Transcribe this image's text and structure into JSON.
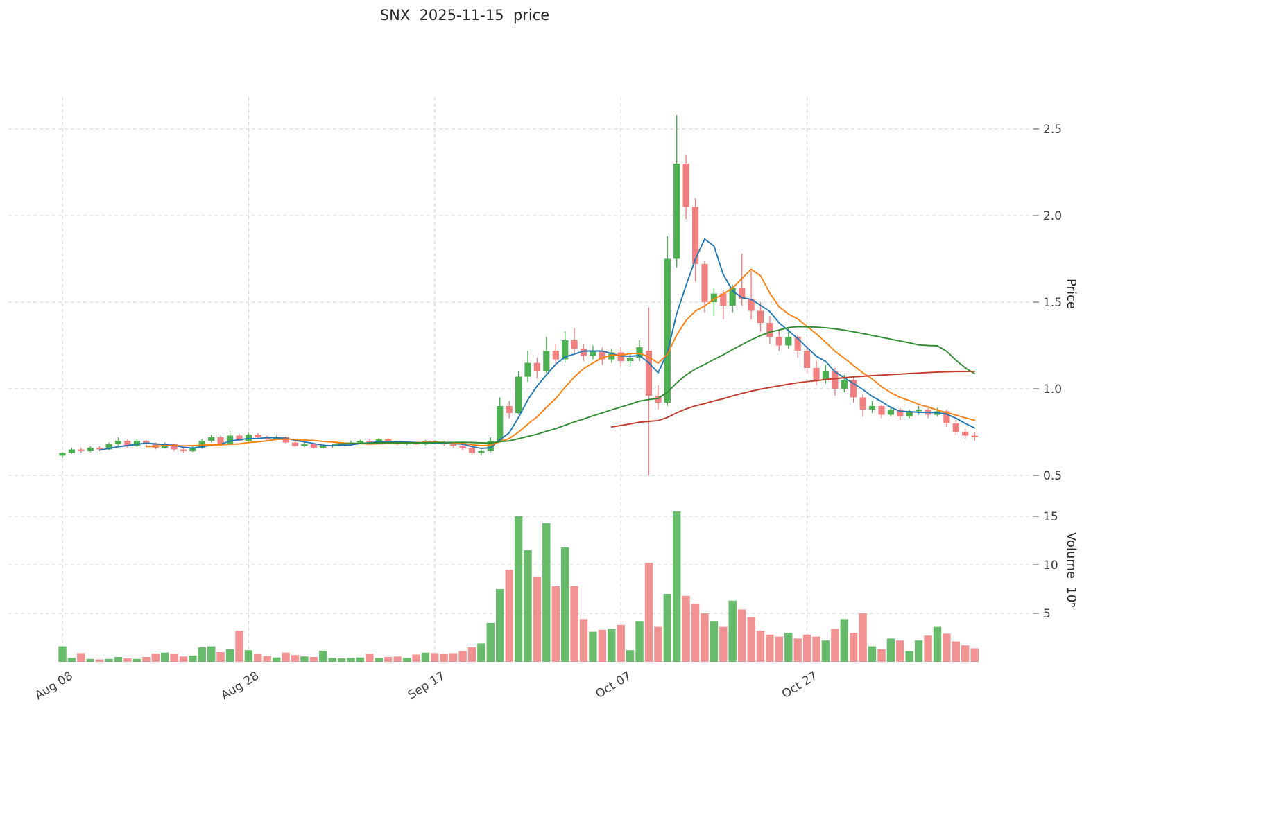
{
  "title": "SNX  2025-11-15  price",
  "axes": {
    "price_label": "Price",
    "volume_label": "Volume  10⁶",
    "price_ticks": [
      0.5,
      1.0,
      1.5,
      2.0,
      2.5
    ],
    "volume_ticks": [
      5,
      10,
      15
    ],
    "x_tick_labels": [
      "Aug 08",
      "Aug 28",
      "Sep 17",
      "Oct 07",
      "Oct 27"
    ],
    "x_tick_indices": [
      0,
      20,
      40,
      60,
      80
    ]
  },
  "colors": {
    "up": "#4caf50",
    "down": "#f08080",
    "grid": "#cfcfcf",
    "text": "#3c3c3c"
  },
  "chart_data": {
    "type": "candlestick",
    "title": "SNX  2025-11-15  price",
    "xlabel": "",
    "ylabel_price": "Price",
    "ylabel_volume": "Volume  10⁶",
    "ylim_price": [
      0.45,
      2.7
    ],
    "ylim_volume": [
      0,
      16.5
    ],
    "grid": true,
    "columns": [
      "open",
      "high",
      "low",
      "close",
      "volume_millions"
    ],
    "candles": [
      [
        0.615,
        0.635,
        0.6,
        0.63,
        1.6
      ],
      [
        0.63,
        0.66,
        0.625,
        0.65,
        0.4
      ],
      [
        0.65,
        0.66,
        0.63,
        0.64,
        0.9
      ],
      [
        0.64,
        0.67,
        0.635,
        0.66,
        0.3
      ],
      [
        0.66,
        0.67,
        0.64,
        0.65,
        0.25
      ],
      [
        0.65,
        0.69,
        0.645,
        0.68,
        0.3
      ],
      [
        0.68,
        0.72,
        0.67,
        0.7,
        0.5
      ],
      [
        0.7,
        0.71,
        0.66,
        0.67,
        0.35
      ],
      [
        0.67,
        0.71,
        0.665,
        0.7,
        0.3
      ],
      [
        0.7,
        0.705,
        0.67,
        0.68,
        0.5
      ],
      [
        0.68,
        0.69,
        0.65,
        0.66,
        0.85
      ],
      [
        0.66,
        0.69,
        0.655,
        0.68,
        0.95
      ],
      [
        0.68,
        0.685,
        0.64,
        0.65,
        0.85
      ],
      [
        0.65,
        0.66,
        0.63,
        0.64,
        0.55
      ],
      [
        0.64,
        0.67,
        0.635,
        0.66,
        0.65
      ],
      [
        0.66,
        0.71,
        0.655,
        0.7,
        1.5
      ],
      [
        0.7,
        0.735,
        0.69,
        0.72,
        1.6
      ],
      [
        0.72,
        0.73,
        0.67,
        0.68,
        1.0
      ],
      [
        0.68,
        0.755,
        0.675,
        0.73,
        1.3
      ],
      [
        0.73,
        0.74,
        0.695,
        0.7,
        3.2
      ],
      [
        0.7,
        0.745,
        0.69,
        0.735,
        1.2
      ],
      [
        0.735,
        0.745,
        0.71,
        0.72,
        0.8
      ],
      [
        0.72,
        0.73,
        0.7,
        0.71,
        0.6
      ],
      [
        0.71,
        0.73,
        0.705,
        0.72,
        0.45
      ],
      [
        0.72,
        0.725,
        0.685,
        0.69,
        0.95
      ],
      [
        0.69,
        0.7,
        0.665,
        0.67,
        0.7
      ],
      [
        0.67,
        0.69,
        0.665,
        0.68,
        0.55
      ],
      [
        0.68,
        0.685,
        0.655,
        0.66,
        0.5
      ],
      [
        0.66,
        0.68,
        0.655,
        0.67,
        1.15
      ],
      [
        0.67,
        0.68,
        0.66,
        0.675,
        0.4
      ],
      [
        0.675,
        0.69,
        0.67,
        0.685,
        0.35
      ],
      [
        0.685,
        0.7,
        0.68,
        0.69,
        0.4
      ],
      [
        0.69,
        0.705,
        0.68,
        0.7,
        0.45
      ],
      [
        0.7,
        0.71,
        0.685,
        0.69,
        0.85
      ],
      [
        0.69,
        0.715,
        0.685,
        0.71,
        0.4
      ],
      [
        0.71,
        0.715,
        0.685,
        0.69,
        0.5
      ],
      [
        0.69,
        0.7,
        0.675,
        0.68,
        0.55
      ],
      [
        0.68,
        0.695,
        0.675,
        0.69,
        0.4
      ],
      [
        0.69,
        0.695,
        0.675,
        0.68,
        0.75
      ],
      [
        0.68,
        0.705,
        0.675,
        0.7,
        0.95
      ],
      [
        0.7,
        0.705,
        0.68,
        0.69,
        0.9
      ],
      [
        0.69,
        0.7,
        0.67,
        0.68,
        0.8
      ],
      [
        0.68,
        0.69,
        0.66,
        0.67,
        0.9
      ],
      [
        0.67,
        0.68,
        0.645,
        0.66,
        1.1
      ],
      [
        0.66,
        0.67,
        0.62,
        0.63,
        1.5
      ],
      [
        0.63,
        0.65,
        0.615,
        0.64,
        1.9
      ],
      [
        0.64,
        0.72,
        0.635,
        0.7,
        4.0
      ],
      [
        0.7,
        0.95,
        0.69,
        0.9,
        7.5
      ],
      [
        0.9,
        0.93,
        0.83,
        0.86,
        9.5
      ],
      [
        0.86,
        1.1,
        0.85,
        1.07,
        15.0
      ],
      [
        1.07,
        1.22,
        1.04,
        1.15,
        11.5
      ],
      [
        1.15,
        1.18,
        1.06,
        1.1,
        8.8
      ],
      [
        1.1,
        1.3,
        1.09,
        1.22,
        14.3
      ],
      [
        1.22,
        1.26,
        1.13,
        1.17,
        7.8
      ],
      [
        1.17,
        1.33,
        1.15,
        1.28,
        11.8
      ],
      [
        1.28,
        1.35,
        1.2,
        1.23,
        7.8
      ],
      [
        1.23,
        1.26,
        1.16,
        1.19,
        4.4
      ],
      [
        1.19,
        1.25,
        1.17,
        1.22,
        3.1
      ],
      [
        1.22,
        1.24,
        1.14,
        1.17,
        3.3
      ],
      [
        1.17,
        1.23,
        1.15,
        1.21,
        3.4
      ],
      [
        1.21,
        1.24,
        1.13,
        1.16,
        3.8
      ],
      [
        1.16,
        1.2,
        1.13,
        1.18,
        1.2
      ],
      [
        1.18,
        1.28,
        1.16,
        1.24,
        4.2
      ],
      [
        1.22,
        1.47,
        0.5,
        0.96,
        10.2
      ],
      [
        0.96,
        1.02,
        0.88,
        0.92,
        3.6
      ],
      [
        0.92,
        1.88,
        0.9,
        1.75,
        7.0
      ],
      [
        1.75,
        2.58,
        1.7,
        2.3,
        15.5
      ],
      [
        2.3,
        2.35,
        1.98,
        2.05,
        6.8
      ],
      [
        2.05,
        2.1,
        1.62,
        1.72,
        6.0
      ],
      [
        1.72,
        1.74,
        1.44,
        1.5,
        5.0
      ],
      [
        1.5,
        1.58,
        1.42,
        1.55,
        4.2
      ],
      [
        1.55,
        1.57,
        1.4,
        1.48,
        3.6
      ],
      [
        1.48,
        1.6,
        1.44,
        1.58,
        6.3
      ],
      [
        1.58,
        1.78,
        1.48,
        1.52,
        5.4
      ],
      [
        1.52,
        1.68,
        1.4,
        1.45,
        4.6
      ],
      [
        1.45,
        1.5,
        1.33,
        1.38,
        3.2
      ],
      [
        1.38,
        1.42,
        1.26,
        1.3,
        2.8
      ],
      [
        1.3,
        1.34,
        1.22,
        1.25,
        2.6
      ],
      [
        1.25,
        1.35,
        1.23,
        1.3,
        3.0
      ],
      [
        1.3,
        1.31,
        1.18,
        1.22,
        2.4
      ],
      [
        1.22,
        1.25,
        1.09,
        1.12,
        2.8
      ],
      [
        1.12,
        1.16,
        1.02,
        1.05,
        2.6
      ],
      [
        1.05,
        1.14,
        1.03,
        1.1,
        2.2
      ],
      [
        1.1,
        1.12,
        0.96,
        1.0,
        3.4
      ],
      [
        1.0,
        1.08,
        0.98,
        1.05,
        4.4
      ],
      [
        1.05,
        1.07,
        0.92,
        0.95,
        3.0
      ],
      [
        0.95,
        0.97,
        0.84,
        0.88,
        5.0
      ],
      [
        0.88,
        0.93,
        0.86,
        0.9,
        1.6
      ],
      [
        0.9,
        0.91,
        0.83,
        0.85,
        1.3
      ],
      [
        0.85,
        0.9,
        0.84,
        0.88,
        2.4
      ],
      [
        0.88,
        0.89,
        0.82,
        0.84,
        2.2
      ],
      [
        0.84,
        0.88,
        0.83,
        0.87,
        1.1
      ],
      [
        0.87,
        0.9,
        0.85,
        0.88,
        2.2
      ],
      [
        0.88,
        0.89,
        0.83,
        0.85,
        2.7
      ],
      [
        0.85,
        0.89,
        0.84,
        0.87,
        3.6
      ],
      [
        0.87,
        0.88,
        0.78,
        0.8,
        2.9
      ],
      [
        0.8,
        0.82,
        0.73,
        0.75,
        2.1
      ],
      [
        0.75,
        0.77,
        0.71,
        0.73,
        1.7
      ],
      [
        0.73,
        0.75,
        0.7,
        0.72,
        1.4
      ]
    ],
    "moving_averages": [
      {
        "name": "ma-5",
        "window": 5,
        "color": "#1f77b4"
      },
      {
        "name": "ma-10",
        "window": 10,
        "color": "#ff7f0e"
      },
      {
        "name": "ma-30",
        "window": 30,
        "color": "#2e8b2e"
      },
      {
        "name": "ma-60",
        "window": 60,
        "color": "#c0392b"
      }
    ],
    "legend_position": "none"
  }
}
